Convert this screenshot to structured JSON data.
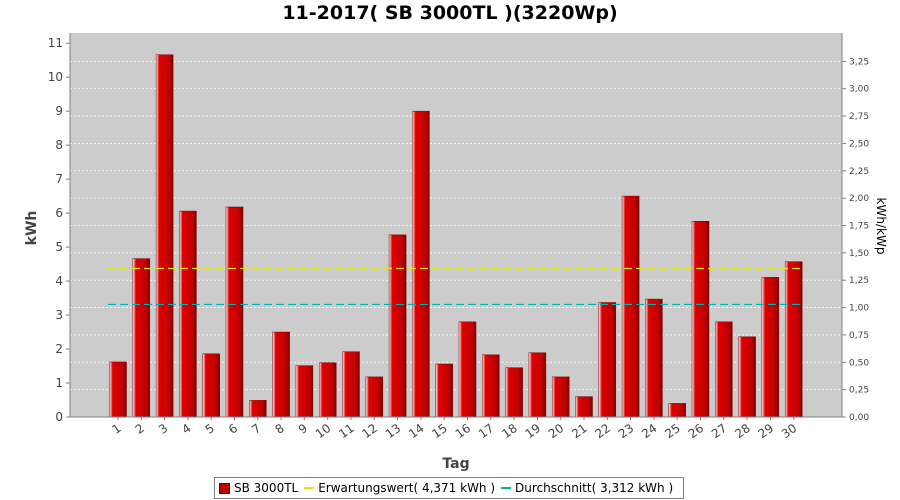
{
  "chart_data": {
    "type": "bar",
    "title": "11-2017( SB 3000TL )(3220Wp)",
    "xlabel": "Tag",
    "ylabel": "kWh",
    "y2label": "kWh/kWp",
    "ylim": [
      0,
      11.3
    ],
    "y2lim": [
      0,
      3.509
    ],
    "yticks": [
      "0",
      "1",
      "2",
      "3",
      "4",
      "5",
      "6",
      "7",
      "8",
      "9",
      "10",
      "11"
    ],
    "y2ticks": [
      "0,00",
      "0,25",
      "0,50",
      "0,75",
      "1,00",
      "1,25",
      "1,50",
      "1,75",
      "2,00",
      "2,25",
      "2,50",
      "2,75",
      "3,00",
      "3,25"
    ],
    "categories": [
      "1",
      "2",
      "3",
      "4",
      "5",
      "6",
      "7",
      "8",
      "9",
      "10",
      "11",
      "12",
      "13",
      "14",
      "15",
      "16",
      "17",
      "18",
      "19",
      "20",
      "21",
      "22",
      "23",
      "24",
      "25",
      "26",
      "27",
      "28",
      "29",
      "30"
    ],
    "series": [
      {
        "name": "SB 3000TL",
        "values": [
          1.62,
          4.66,
          10.66,
          6.06,
          1.86,
          6.18,
          0.49,
          2.5,
          1.51,
          1.6,
          1.92,
          1.18,
          5.36,
          9.0,
          1.56,
          2.8,
          1.83,
          1.45,
          1.89,
          1.18,
          0.6,
          3.37,
          6.5,
          3.47,
          0.4,
          5.76,
          2.8,
          2.36,
          4.11,
          4.57
        ]
      }
    ],
    "lines": [
      {
        "name": "Erwartungswert( 4,371 kWh )",
        "value": 4.371,
        "color": "#e6e600"
      },
      {
        "name": "Durchschnitt( 3,312 kWh )",
        "value": 3.312,
        "color": "#00b3b3"
      }
    ],
    "bar_color": "#e00000",
    "background": "#cccccc",
    "grid": true,
    "legend_position": "bottom"
  }
}
